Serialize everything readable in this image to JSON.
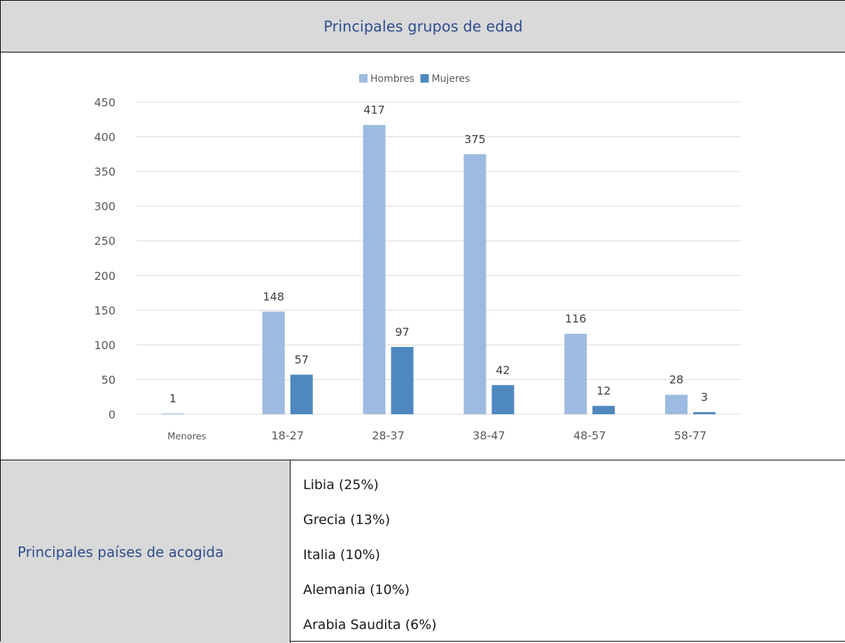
{
  "header": {
    "title": "Principales grupos de edad"
  },
  "chart_data": {
    "type": "bar",
    "categories": [
      "Menores",
      "18-27",
      "28-37",
      "38-47",
      "48-57",
      "58-77"
    ],
    "series": [
      {
        "name": "Hombres",
        "color": "#9dbbe0",
        "values": [
          1,
          148,
          417,
          375,
          116,
          28
        ]
      },
      {
        "name": "Mujeres",
        "color": "#4f88bf",
        "values": [
          0,
          57,
          97,
          42,
          12,
          3
        ]
      }
    ],
    "data_labels": [
      [
        "1",
        "148",
        "417",
        "375",
        "116",
        "28"
      ],
      [
        "",
        "57",
        "97",
        "42",
        "12",
        "3"
      ]
    ],
    "ylim": [
      0,
      450
    ],
    "yticks": [
      0,
      50,
      100,
      150,
      200,
      250,
      300,
      350,
      400,
      450
    ],
    "grid": true,
    "legend_position": "top-center"
  },
  "host_countries": {
    "label": "Principales países de acogida",
    "items": [
      "Libia (25%)",
      "Grecia (13%)",
      "Italia (10%)",
      "Alemania (10%)",
      "Arabia Saudita (6%)"
    ]
  }
}
